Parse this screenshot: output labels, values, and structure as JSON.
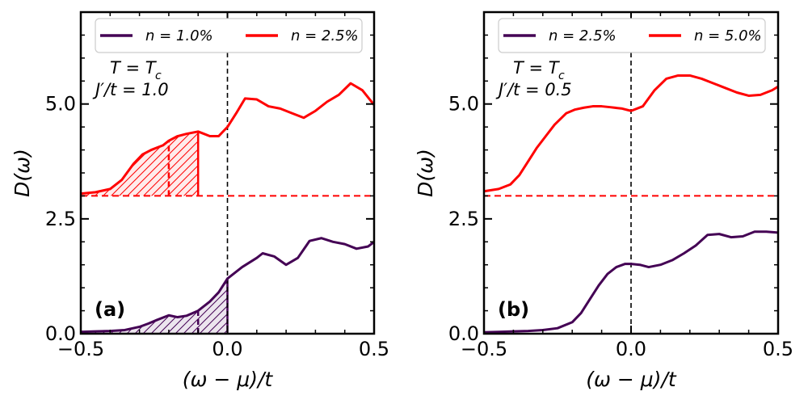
{
  "chart_data": [
    {
      "type": "line",
      "panel_label": "(a)",
      "xlabel": "(ω − μ)/t",
      "ylabel": "D(ω)",
      "xlim": [
        -0.5,
        0.5
      ],
      "ylim": [
        0,
        7.0
      ],
      "xticks": [
        -0.5,
        0.0,
        0.5
      ],
      "xtick_labels": [
        "−0.5",
        "0.0",
        "0.5"
      ],
      "yticks": [
        0,
        2.5,
        5.0
      ],
      "ytick_labels": [
        "0.0",
        "2.5",
        "5.0"
      ],
      "annotation_line1": "T = T",
      "annotation_line1_sub": "c",
      "annotation_line2": "J′/t = 1.0",
      "legend": [
        {
          "label": "n = 1.0%",
          "color": "#440154"
        },
        {
          "label": "n = 2.5%",
          "color": "#ff0000"
        }
      ],
      "baseline_y": 3.0,
      "series": [
        {
          "name": "n = 1.0%",
          "color": "#440154",
          "x": [
            -0.5,
            -0.45,
            -0.4,
            -0.35,
            -0.3,
            -0.27,
            -0.24,
            -0.2,
            -0.17,
            -0.14,
            -0.1,
            -0.06,
            -0.03,
            0.0,
            0.05,
            0.1,
            0.12,
            0.16,
            0.2,
            0.24,
            0.28,
            0.32,
            0.36,
            0.4,
            0.44,
            0.48,
            0.5
          ],
          "y": [
            0.04,
            0.05,
            0.06,
            0.08,
            0.15,
            0.22,
            0.3,
            0.4,
            0.36,
            0.39,
            0.5,
            0.7,
            0.9,
            1.2,
            1.45,
            1.65,
            1.75,
            1.68,
            1.5,
            1.65,
            2.02,
            2.08,
            2.0,
            1.95,
            1.85,
            1.9,
            2.0
          ]
        },
        {
          "name": "n = 2.5%",
          "color": "#ff0000",
          "x": [
            -0.5,
            -0.45,
            -0.4,
            -0.36,
            -0.32,
            -0.29,
            -0.26,
            -0.22,
            -0.2,
            -0.17,
            -0.14,
            -0.1,
            -0.06,
            -0.03,
            0.0,
            0.03,
            0.06,
            0.1,
            0.14,
            0.18,
            0.22,
            0.26,
            0.3,
            0.34,
            0.38,
            0.42,
            0.46,
            0.5
          ],
          "y": [
            3.05,
            3.08,
            3.15,
            3.35,
            3.7,
            3.9,
            4.0,
            4.1,
            4.2,
            4.3,
            4.35,
            4.4,
            4.3,
            4.3,
            4.5,
            4.8,
            5.12,
            5.1,
            4.95,
            4.9,
            4.8,
            4.7,
            4.85,
            5.05,
            5.2,
            5.45,
            5.3,
            4.98
          ]
        }
      ],
      "shaded": [
        {
          "series": 1,
          "from": -0.5,
          "to": -0.1,
          "dashed_at": -0.2
        },
        {
          "series": 0,
          "from": -0.5,
          "to": 0.0,
          "dashed_at": -0.1
        }
      ]
    },
    {
      "type": "line",
      "panel_label": "(b)",
      "xlabel": "(ω − μ)/t",
      "ylabel": "D(ω)",
      "xlim": [
        -0.5,
        0.5
      ],
      "ylim": [
        0,
        7.0
      ],
      "xticks": [
        -0.5,
        0.0,
        0.5
      ],
      "xtick_labels": [
        "−0.5",
        "0.0",
        "0.5"
      ],
      "yticks": [
        0,
        2.5,
        5.0
      ],
      "ytick_labels": [
        "0.0",
        "2.5",
        "5.0"
      ],
      "annotation_line1": "T = T",
      "annotation_line1_sub": "c",
      "annotation_line2": "J′/t = 0.5",
      "legend": [
        {
          "label": "n = 2.5%",
          "color": "#440154"
        },
        {
          "label": "n = 5.0%",
          "color": "#ff0000"
        }
      ],
      "baseline_y": 3.0,
      "series": [
        {
          "name": "n = 2.5%",
          "color": "#440154",
          "x": [
            -0.5,
            -0.45,
            -0.4,
            -0.35,
            -0.3,
            -0.25,
            -0.2,
            -0.17,
            -0.14,
            -0.11,
            -0.08,
            -0.05,
            -0.02,
            0.0,
            0.03,
            0.06,
            0.1,
            0.14,
            0.18,
            0.22,
            0.26,
            0.3,
            0.34,
            0.38,
            0.42,
            0.46,
            0.5
          ],
          "y": [
            0.03,
            0.04,
            0.05,
            0.06,
            0.08,
            0.12,
            0.25,
            0.45,
            0.75,
            1.05,
            1.3,
            1.45,
            1.52,
            1.52,
            1.5,
            1.45,
            1.5,
            1.6,
            1.75,
            1.92,
            2.15,
            2.17,
            2.1,
            2.12,
            2.22,
            2.22,
            2.2
          ]
        },
        {
          "name": "n = 5.0%",
          "color": "#ff0000",
          "x": [
            -0.5,
            -0.45,
            -0.41,
            -0.38,
            -0.35,
            -0.32,
            -0.29,
            -0.26,
            -0.22,
            -0.19,
            -0.16,
            -0.13,
            -0.1,
            -0.07,
            -0.03,
            0.0,
            0.04,
            0.08,
            0.12,
            0.16,
            0.2,
            0.24,
            0.28,
            0.32,
            0.36,
            0.4,
            0.44,
            0.48,
            0.5
          ],
          "y": [
            3.1,
            3.15,
            3.25,
            3.45,
            3.75,
            4.05,
            4.3,
            4.55,
            4.8,
            4.88,
            4.92,
            4.95,
            4.95,
            4.93,
            4.9,
            4.85,
            4.95,
            5.3,
            5.55,
            5.62,
            5.62,
            5.55,
            5.45,
            5.35,
            5.25,
            5.18,
            5.2,
            5.3,
            5.38
          ]
        }
      ],
      "shaded": []
    }
  ]
}
